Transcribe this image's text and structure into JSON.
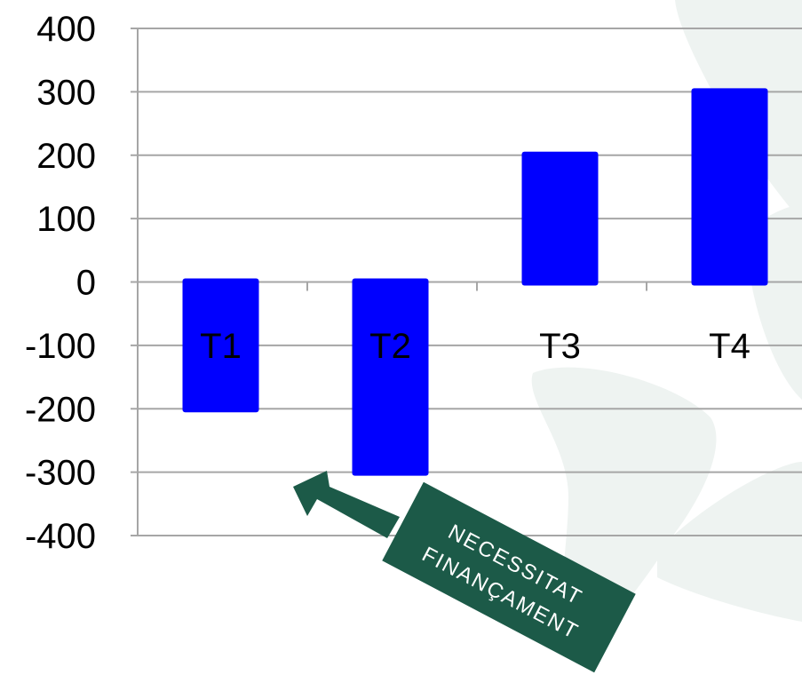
{
  "chart_data": {
    "type": "bar",
    "categories": [
      "T1",
      "T2",
      "T3",
      "T4"
    ],
    "values": [
      -200,
      -300,
      200,
      300
    ],
    "ylim": [
      -400,
      400
    ],
    "yticks": [
      "400",
      "300",
      "200",
      "100",
      "0",
      "-100",
      "-200",
      "-300",
      "-400"
    ],
    "grid": true,
    "annotation": {
      "line1": "NECESSITAT",
      "line2": "FINANÇAMENT",
      "points_to": "T2"
    },
    "colors": {
      "bar": "#0000ff",
      "grid": "#a6a6a6",
      "annotation": "#1c5a48",
      "watermark": "#eef3f1"
    }
  }
}
